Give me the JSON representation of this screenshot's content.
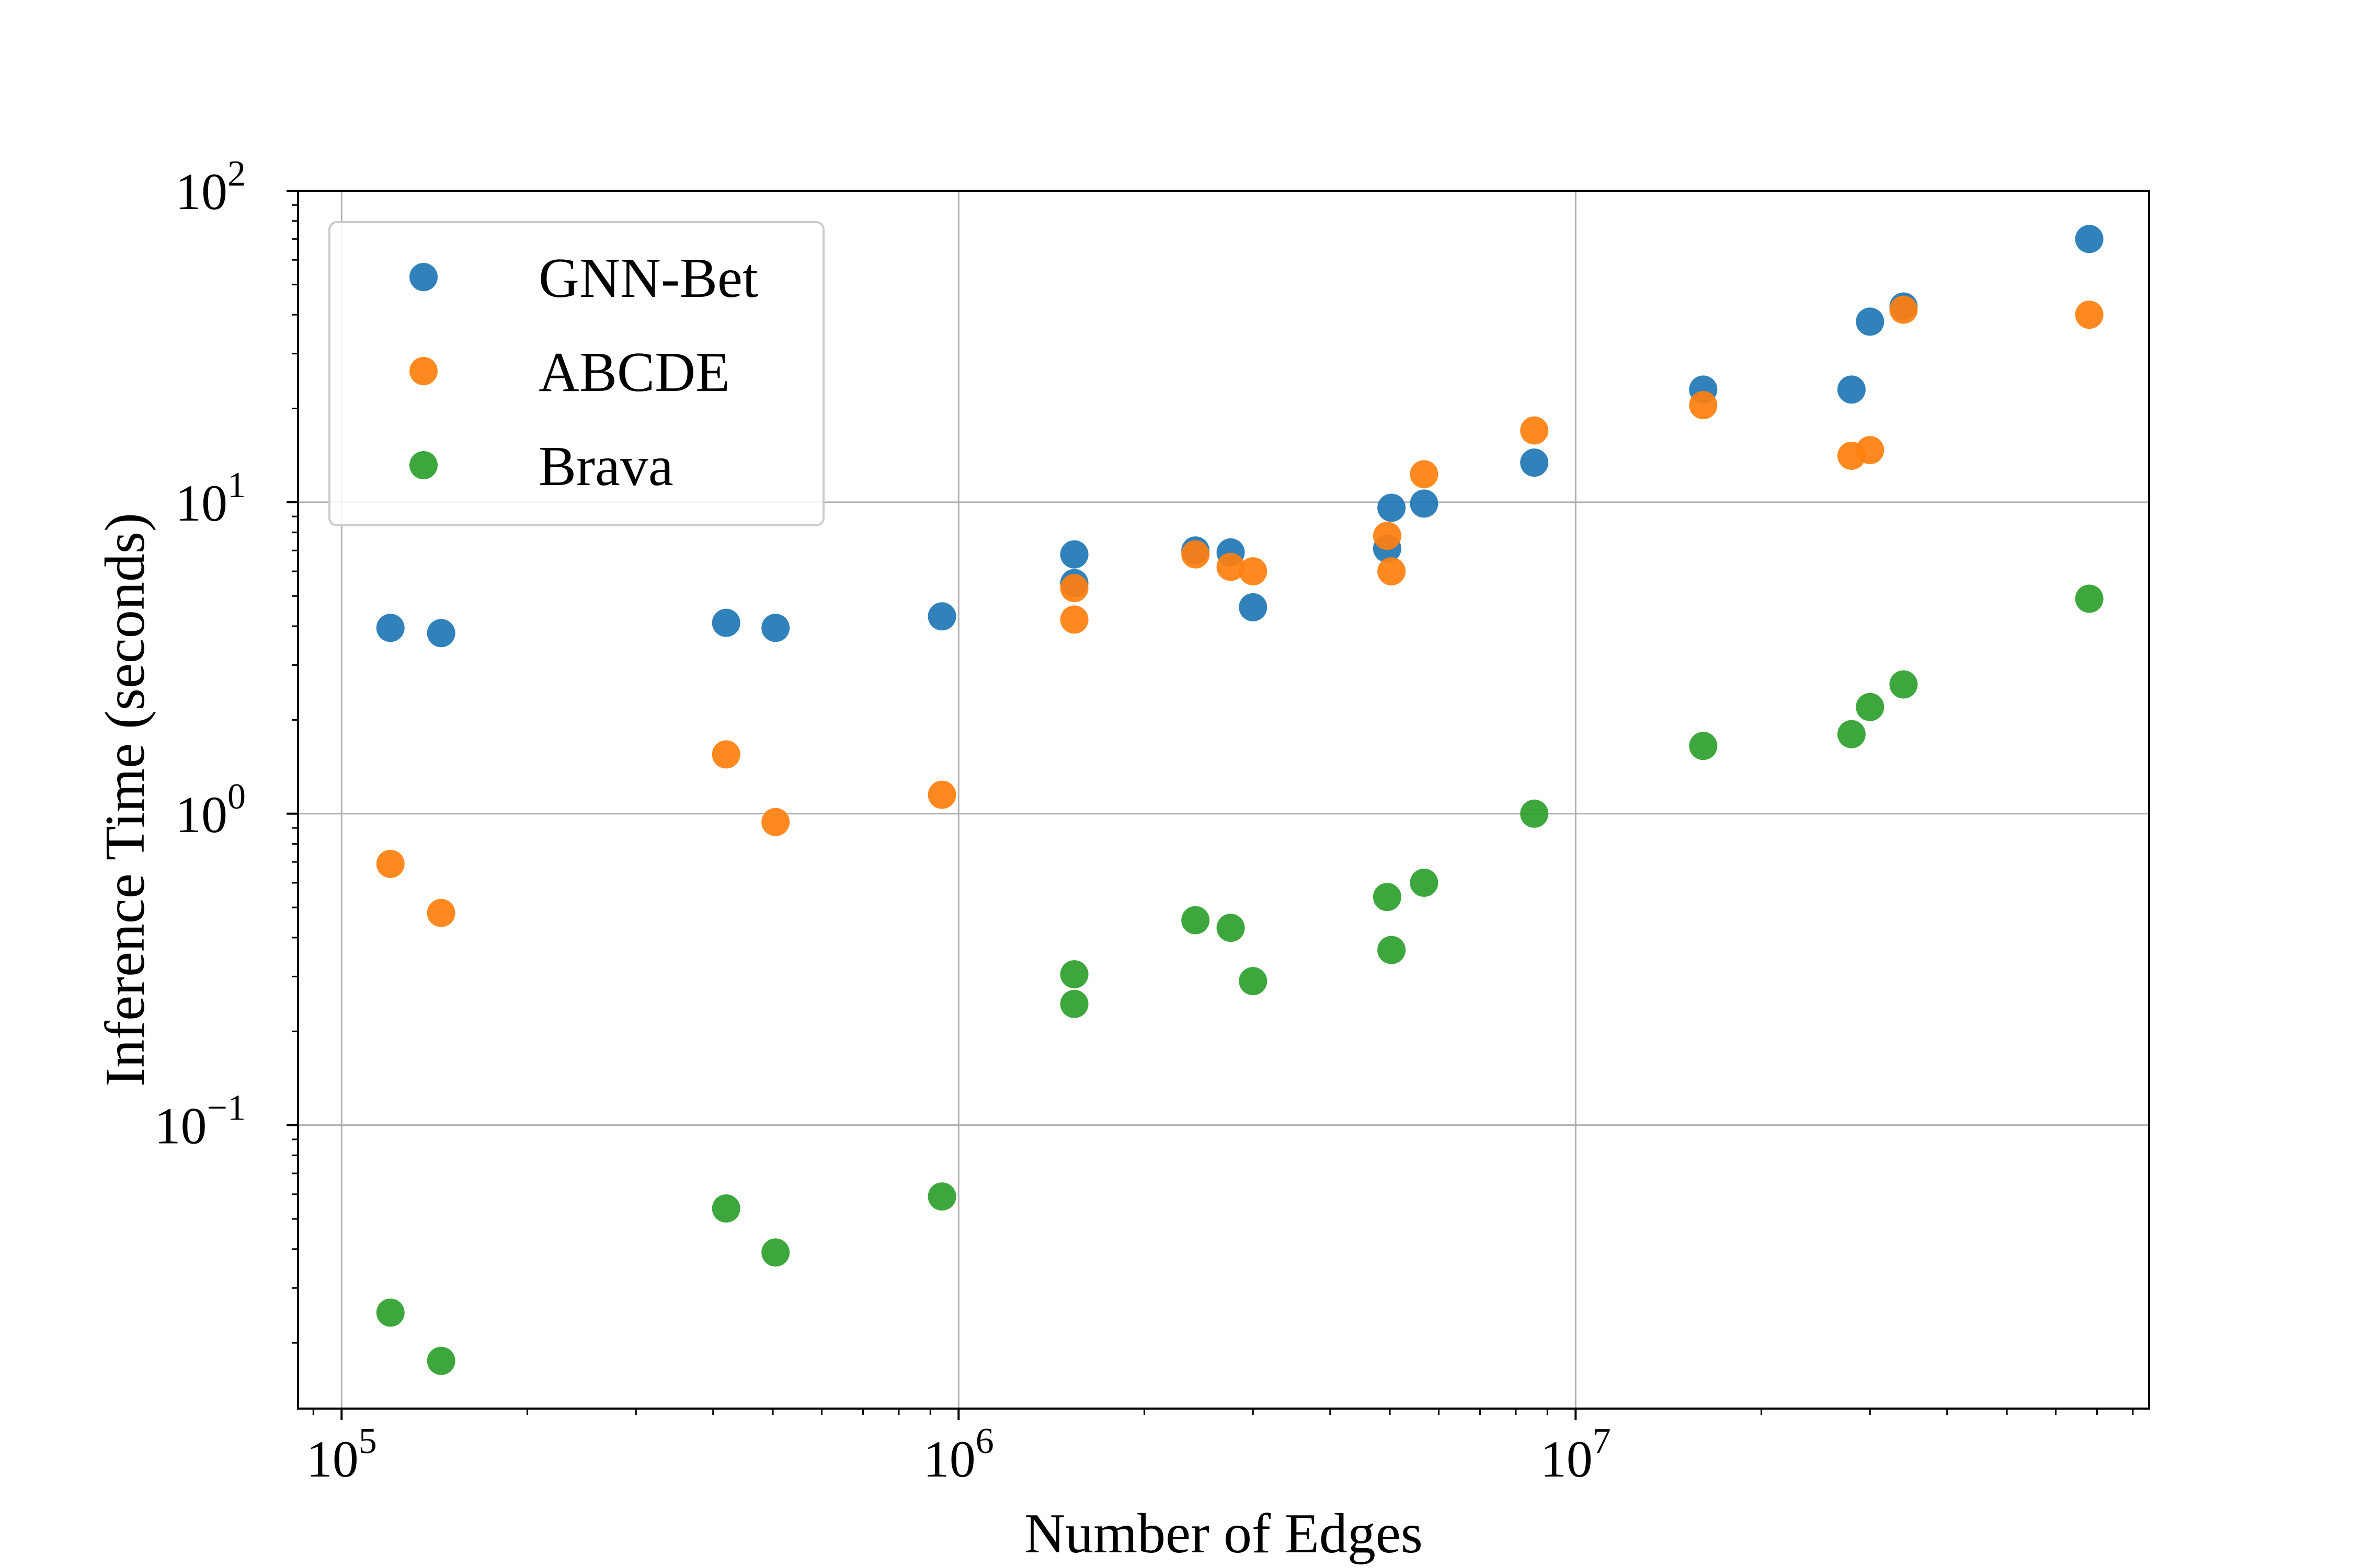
{
  "chart_data": {
    "type": "scatter",
    "xscale": "log",
    "yscale": "log",
    "xlabel": "Number of Edges",
    "ylabel": "Inference Time (seconds)",
    "xlim": [
      85000,
      85000000
    ],
    "ylim": [
      0.0123,
      100
    ],
    "grid": true,
    "legend": {
      "placement": "top-left"
    },
    "x_ticks": [
      {
        "value": 100000,
        "base": "10",
        "exp": "5"
      },
      {
        "value": 1000000,
        "base": "10",
        "exp": "6"
      },
      {
        "value": 10000000,
        "base": "10",
        "exp": "7"
      }
    ],
    "y_ticks": [
      {
        "value": 0.1,
        "base": "10",
        "exp": "−1"
      },
      {
        "value": 1,
        "base": "10",
        "exp": "0"
      },
      {
        "value": 10,
        "base": "10",
        "exp": "1"
      },
      {
        "value": 100,
        "base": "10",
        "exp": "2"
      }
    ],
    "series": [
      {
        "name": "GNN-Bet",
        "color": "#1f77b4",
        "points": [
          [
            120000,
            3.95
          ],
          [
            145000,
            3.8
          ],
          [
            420000,
            4.1
          ],
          [
            505000,
            3.95
          ],
          [
            940000,
            4.3
          ],
          [
            1540000,
            6.8
          ],
          [
            1540000,
            5.5
          ],
          [
            2420000,
            7.0
          ],
          [
            2760000,
            6.9
          ],
          [
            3000000,
            4.6
          ],
          [
            4950000,
            7.1
          ],
          [
            5030000,
            9.6
          ],
          [
            5680000,
            9.9
          ],
          [
            8570000,
            13.4
          ],
          [
            16100000,
            23.0
          ],
          [
            28000000,
            23.0
          ],
          [
            30000000,
            38.0
          ],
          [
            34000000,
            42.5
          ],
          [
            68000000,
            70.0
          ]
        ]
      },
      {
        "name": "ABCDE",
        "color": "#ff7f0e",
        "points": [
          [
            120000,
            0.69
          ],
          [
            145000,
            0.48
          ],
          [
            420000,
            1.55
          ],
          [
            505000,
            0.94
          ],
          [
            940000,
            1.15
          ],
          [
            1540000,
            5.3
          ],
          [
            1540000,
            4.2
          ],
          [
            2420000,
            6.8
          ],
          [
            2760000,
            6.2
          ],
          [
            3000000,
            6.0
          ],
          [
            4950000,
            7.8
          ],
          [
            5030000,
            6.0
          ],
          [
            5680000,
            12.3
          ],
          [
            8570000,
            17.0
          ],
          [
            16100000,
            20.5
          ],
          [
            28000000,
            14.1
          ],
          [
            30000000,
            14.7
          ],
          [
            34000000,
            41.5
          ],
          [
            68000000,
            40.0
          ]
        ]
      },
      {
        "name": "Brava",
        "color": "#2ca02c",
        "points": [
          [
            120000,
            0.025
          ],
          [
            145000,
            0.0175
          ],
          [
            420000,
            0.054
          ],
          [
            505000,
            0.039
          ],
          [
            940000,
            0.059
          ],
          [
            1540000,
            0.305
          ],
          [
            1540000,
            0.245
          ],
          [
            2420000,
            0.455
          ],
          [
            2760000,
            0.43
          ],
          [
            3000000,
            0.29
          ],
          [
            4950000,
            0.54
          ],
          [
            5030000,
            0.365
          ],
          [
            5680000,
            0.6
          ],
          [
            8570000,
            1.0
          ],
          [
            16100000,
            1.65
          ],
          [
            28000000,
            1.8
          ],
          [
            30000000,
            2.2
          ],
          [
            34000000,
            2.6
          ],
          [
            68000000,
            4.9
          ]
        ]
      }
    ]
  }
}
